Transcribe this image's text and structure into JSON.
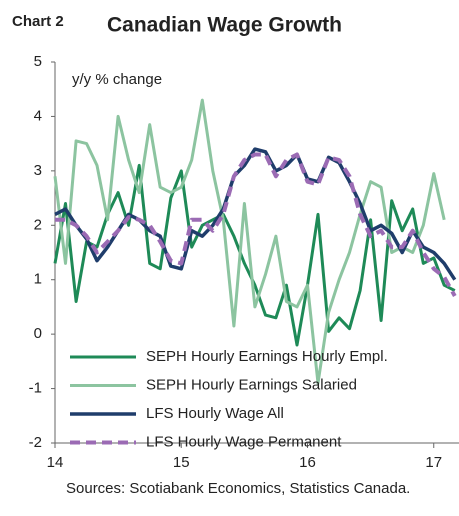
{
  "chart_data": {
    "type": "line",
    "label": "Chart 2",
    "title": "Canadian Wage Growth",
    "ylabel": "y/y % change",
    "source": "Sources: Scotiabank Economics, Statistics Canada.",
    "x": [
      14,
      14.083,
      14.167,
      14.25,
      14.333,
      14.417,
      14.5,
      14.583,
      14.667,
      14.75,
      14.833,
      14.917,
      15,
      15.083,
      15.167,
      15.25,
      15.333,
      15.417,
      15.5,
      15.583,
      15.667,
      15.75,
      15.833,
      15.917,
      16,
      16.083,
      16.167,
      16.25,
      16.333,
      16.417,
      16.5,
      16.583,
      16.667,
      16.75,
      16.833,
      16.917,
      17,
      17.083,
      17.167
    ],
    "series": [
      {
        "name": "SEPH Hourly Earnings Hourly Empl.",
        "color": "#1e8a57",
        "width": 3,
        "dash": false,
        "values": [
          1.3,
          2.4,
          0.6,
          1.7,
          1.6,
          2.2,
          2.6,
          2.0,
          3.1,
          1.3,
          1.2,
          2.5,
          3.0,
          1.6,
          2.0,
          2.1,
          2.2,
          1.8,
          1.3,
          0.9,
          0.35,
          0.3,
          0.9,
          -0.2,
          0.9,
          2.2,
          0.05,
          0.3,
          0.1,
          0.8,
          2.1,
          0.25,
          2.45,
          1.9,
          2.3,
          1.3,
          1.4,
          0.9,
          0.8
        ]
      },
      {
        "name": "SEPH Hourly Earnings Salaried",
        "color": "#8cc4a0",
        "width": 3,
        "dash": false,
        "values": [
          2.9,
          1.3,
          3.55,
          3.5,
          3.1,
          2.1,
          4.0,
          3.2,
          2.6,
          3.85,
          2.7,
          2.6,
          2.7,
          3.2,
          4.3,
          3.0,
          2.1,
          0.15,
          2.4,
          0.5,
          1.1,
          1.8,
          0.6,
          0.5,
          0.9,
          -0.9,
          0.4,
          1.0,
          1.5,
          2.2,
          2.8,
          2.7,
          1.5,
          1.6,
          1.5,
          2.0,
          2.95,
          2.1,
          null
        ]
      },
      {
        "name": "LFS Hourly Wage All",
        "color": "#1f3d6b",
        "width": 3.5,
        "dash": false,
        "values": [
          2.2,
          2.3,
          2.0,
          1.75,
          1.35,
          1.6,
          1.9,
          2.2,
          2.1,
          1.9,
          1.8,
          1.25,
          1.2,
          1.9,
          1.8,
          2.0,
          2.3,
          2.9,
          3.1,
          3.4,
          3.35,
          3.0,
          3.1,
          3.3,
          2.85,
          2.8,
          3.25,
          3.15,
          2.8,
          2.4,
          1.9,
          2.0,
          1.85,
          1.5,
          1.9,
          1.6,
          1.5,
          1.3,
          1.0
        ]
      },
      {
        "name": "LFS Hourly Wage Permanent",
        "color": "#9b6bb4",
        "width": 4,
        "dash": true,
        "values": [
          2.1,
          2.1,
          2.0,
          1.8,
          1.5,
          1.7,
          1.9,
          2.15,
          2.1,
          2.0,
          1.7,
          1.35,
          1.3,
          2.1,
          2.1,
          1.9,
          2.2,
          2.9,
          3.2,
          3.3,
          3.3,
          2.9,
          3.2,
          3.3,
          2.8,
          2.75,
          3.25,
          3.2,
          2.9,
          2.2,
          1.8,
          1.9,
          1.6,
          1.6,
          1.9,
          1.5,
          1.2,
          1.05,
          0.7
        ]
      }
    ],
    "xlim": [
      14,
      17.2
    ],
    "xticks": [
      14,
      15,
      16,
      17
    ],
    "ylim": [
      -2,
      5
    ],
    "yticks": [
      -2,
      -1,
      0,
      1,
      2,
      3,
      4,
      5
    ],
    "legend": "lower left",
    "grid": false
  }
}
